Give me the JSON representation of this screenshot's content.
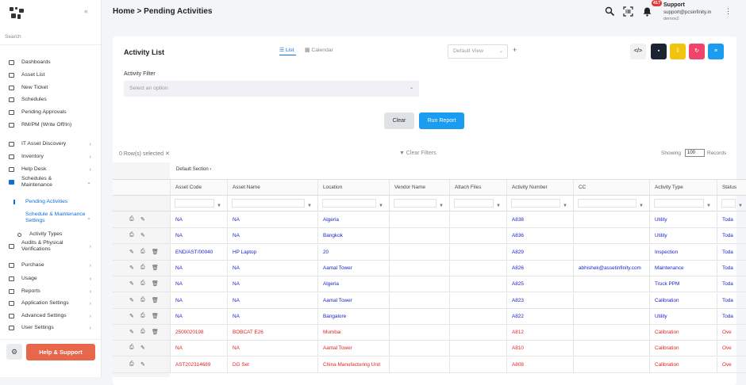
{
  "sidebar": {
    "search_placeholder": "Search",
    "items": [
      {
        "label": "Dashboards",
        "chev": ""
      },
      {
        "label": "Asset List",
        "chev": ""
      },
      {
        "label": "New Ticket",
        "chev": ""
      },
      {
        "label": "Schedules",
        "chev": ""
      },
      {
        "label": "Pending Approvals",
        "chev": ""
      },
      {
        "label": "RM/PM (Write Off/In)",
        "chev": ""
      },
      {
        "label": "IT Asset Discovery",
        "chev": "›"
      },
      {
        "label": "Inventory",
        "chev": "›"
      },
      {
        "label": "Help Desk",
        "chev": "›"
      },
      {
        "label": "Schedules & Maintenance",
        "chev": "⌄"
      },
      {
        "label": "Pending Activities",
        "chev": ""
      },
      {
        "label": "Schedule & Maintenance Settings",
        "chev": "⌄"
      },
      {
        "label": "Activity Types",
        "chev": ""
      },
      {
        "label": "Audits & Physical Verifications",
        "chev": "›"
      },
      {
        "label": "Purchase",
        "chev": "›"
      },
      {
        "label": "Usage",
        "chev": "›"
      },
      {
        "label": "Reports",
        "chev": "›"
      },
      {
        "label": "Application Settings",
        "chev": "›"
      },
      {
        "label": "Advanced Settings",
        "chev": "›"
      },
      {
        "label": "User Settings",
        "chev": "›"
      }
    ],
    "help_label": "Help & Support"
  },
  "header": {
    "breadcrumb": "Home > Pending Activities",
    "notification_count": "417",
    "user_name": "Support",
    "user_email": "support@pcsinfinity.in",
    "user_role": "demov2"
  },
  "main": {
    "title": "Activity List",
    "tab_list": "List",
    "tab_calendar": "Calendar",
    "view_select": "Default View",
    "filter_label": "Activity Filter",
    "filter_placeholder": "Select an option",
    "clear_btn": "Clear",
    "run_btn": "Run Report",
    "rows_selected": "0 Row(s) selected",
    "clear_filters": "Clear Filters",
    "showing": "Showing",
    "page_size": "100",
    "records": "Records",
    "default_section": "Default Section"
  },
  "colors": {
    "accent": "#1a9cf0",
    "red_text": "#e32424",
    "blue_text": "#1a25c8",
    "help": "#e8664a"
  },
  "table": {
    "columns": [
      "Asset Code",
      "Asset Name",
      "Location",
      "Vendor Name",
      "Attach Files",
      "Activity Number",
      "CC",
      "Activity Type",
      "Status"
    ],
    "rows": [
      {
        "c": [
          "NA",
          "NA",
          "Algeria",
          "",
          "",
          "A838",
          "",
          "Utility",
          "Toda"
        ],
        "color": "blue",
        "actions": 2
      },
      {
        "c": [
          "NA",
          "NA",
          "Bangkok",
          "",
          "",
          "A836",
          "",
          "Utility",
          "Toda"
        ],
        "color": "blue",
        "actions": 2
      },
      {
        "c": [
          "END/AST/00040",
          "HP Laptop",
          "20",
          "",
          "",
          "A829",
          "",
          "Inspection",
          "Toda"
        ],
        "color": "blue",
        "actions": 3
      },
      {
        "c": [
          "NA",
          "NA",
          "Aamal Tower",
          "",
          "",
          "A826",
          "abhishek@assetinfinity.com",
          "Maintenance",
          "Toda"
        ],
        "color": "blue",
        "actions": 3
      },
      {
        "c": [
          "NA",
          "NA",
          "Algeria",
          "",
          "",
          "A825",
          "",
          "Truck PPM",
          "Toda"
        ],
        "color": "blue",
        "actions": 3
      },
      {
        "c": [
          "NA",
          "NA",
          "Aamal Tower",
          "",
          "",
          "A823",
          "",
          "Calibration",
          "Toda"
        ],
        "color": "blue",
        "actions": 3
      },
      {
        "c": [
          "NA",
          "NA",
          "Bangalore",
          "",
          "",
          "A822",
          "",
          "Utility",
          "Toda"
        ],
        "color": "blue",
        "actions": 3
      },
      {
        "c": [
          "2500020198",
          "BOBCAT E26",
          "Mumbai",
          "",
          "",
          "A812",
          "",
          "Calibration",
          "Ove"
        ],
        "color": "red",
        "actions": 3
      },
      {
        "c": [
          "NA",
          "NA",
          "Aamal Tower",
          "",
          "",
          "A810",
          "",
          "Calibration",
          "Ove"
        ],
        "color": "red",
        "actions": 2
      },
      {
        "c": [
          "AST202314689",
          "DG Set",
          "China Manufacturing Unit",
          "",
          "",
          "A808",
          "",
          "Calibration",
          "Ove"
        ],
        "color": "red",
        "actions": 2
      }
    ]
  }
}
